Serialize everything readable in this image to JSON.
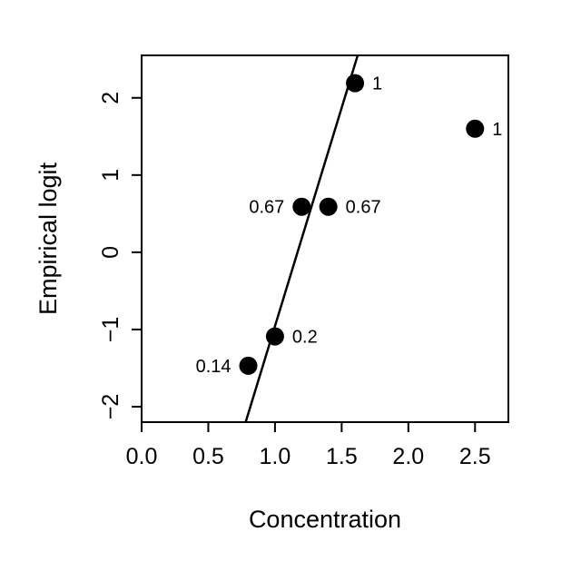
{
  "chart_data": {
    "type": "scatter",
    "title": "",
    "xlabel": "Concentration",
    "ylabel": "Empirical logit",
    "xlim": [
      0,
      2.75
    ],
    "ylim": [
      -2.2,
      2.55
    ],
    "x_ticks": [
      0.0,
      0.5,
      1.0,
      1.5,
      2.0,
      2.5
    ],
    "x_tick_labels": [
      "0.0",
      "0.5",
      "1.0",
      "1.5",
      "2.0",
      "2.5"
    ],
    "y_ticks": [
      -2,
      -1,
      0,
      1,
      2
    ],
    "y_tick_labels": [
      "−2",
      "−1",
      "0",
      "1",
      "2"
    ],
    "grid": false,
    "points": [
      {
        "x": 0.8,
        "y": -1.47,
        "label": "0.14",
        "label_side": "left"
      },
      {
        "x": 1.0,
        "y": -1.09,
        "label": "0.2",
        "label_side": "right"
      },
      {
        "x": 1.2,
        "y": 0.59,
        "label": "0.67",
        "label_side": "left"
      },
      {
        "x": 1.4,
        "y": 0.59,
        "label": "0.67",
        "label_side": "right"
      },
      {
        "x": 1.6,
        "y": 2.19,
        "label": "1",
        "label_side": "right"
      },
      {
        "x": 2.5,
        "y": 1.6,
        "label": "1",
        "label_side": "right"
      }
    ],
    "fit_line": {
      "x1": 0.78,
      "y1": -2.2,
      "x2": 1.62,
      "y2": 2.55
    }
  }
}
